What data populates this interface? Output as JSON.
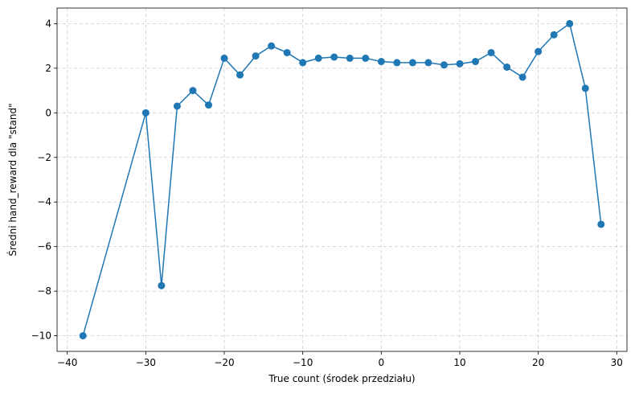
{
  "chart_data": {
    "type": "line",
    "title": "",
    "xlabel": "True count (środek przedziału)",
    "ylabel": "Średni hand_reward dla \"stand\"",
    "xlim": [
      -41.3,
      31.3
    ],
    "ylim": [
      -10.7,
      4.7
    ],
    "xticks": [
      -40,
      -30,
      -20,
      -10,
      0,
      10,
      20,
      30
    ],
    "yticks": [
      -10,
      -8,
      -6,
      -4,
      -2,
      0,
      2,
      4
    ],
    "xtick_labels": [
      "−40",
      "−30",
      "−20",
      "−10",
      "0",
      "10",
      "20",
      "30"
    ],
    "ytick_labels": [
      "−10",
      "−8",
      "−6",
      "−4",
      "−2",
      "0",
      "2",
      "4"
    ],
    "grid": true,
    "marker": "circle",
    "color": "#1f77b4",
    "series": [
      {
        "x": [
          -38,
          -30,
          -28,
          -26,
          -24,
          -22,
          -20,
          -18,
          -16,
          -14,
          -12,
          -10,
          -8,
          -6,
          -4,
          -2,
          0,
          2,
          4,
          6,
          8,
          10,
          12,
          14,
          16,
          18,
          20,
          22,
          24,
          26,
          28
        ],
        "values": [
          -10.0,
          0.0,
          -7.75,
          0.3,
          1.0,
          0.35,
          2.45,
          1.7,
          2.55,
          3.0,
          2.7,
          2.25,
          2.45,
          2.5,
          2.45,
          2.45,
          2.3,
          2.25,
          2.25,
          2.25,
          2.15,
          2.2,
          2.3,
          2.7,
          2.05,
          1.6,
          2.75,
          3.5,
          4.0,
          1.1,
          -5.0
        ]
      }
    ]
  }
}
